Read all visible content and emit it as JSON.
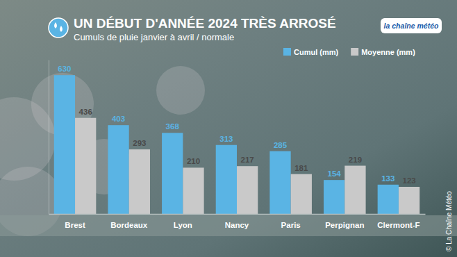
{
  "chart_data": {
    "type": "bar",
    "title": "UN DÉBUT D'ANNÉE 2024 TRÈS ARROSÉ",
    "subtitle": "Cumuls de pluie janvier à avril / normale",
    "categories": [
      "Brest",
      "Bordeaux",
      "Lyon",
      "Nancy",
      "Paris",
      "Perpignan",
      "Clermont-F"
    ],
    "series": [
      {
        "name": "Cumul (mm)",
        "color": "#5ab4e4",
        "values": [
          630,
          403,
          368,
          313,
          285,
          154,
          133
        ]
      },
      {
        "name": "Moyenne (mm)",
        "color": "#c9c9c9",
        "values": [
          436,
          293,
          210,
          217,
          181,
          219,
          123
        ]
      }
    ],
    "ylim": [
      0,
      700
    ],
    "data_labels": true,
    "tick_labels": "x",
    "legend": "top-right",
    "logo": "la chaîne météo",
    "source": "© La Chaîne Météo"
  }
}
